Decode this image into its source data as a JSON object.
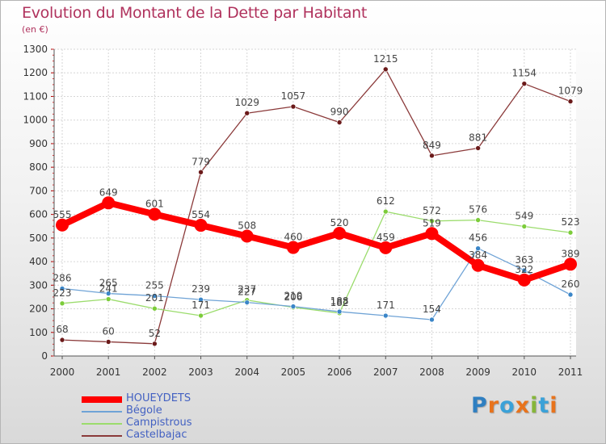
{
  "title": "Evolution du Montant de la Dette par Habitant",
  "unit": "(en €)",
  "logo": {
    "text": "Proxiti",
    "letters": [
      {
        "ch": "P",
        "color": "#2f7fc1"
      },
      {
        "ch": "r",
        "color": "#e8731c"
      },
      {
        "ch": "o",
        "color": "#3aa1d8"
      },
      {
        "ch": "x",
        "color": "#e8731c"
      },
      {
        "ch": "i",
        "color": "#86b63a"
      },
      {
        "ch": "t",
        "color": "#3aa1d8"
      },
      {
        "ch": "i",
        "color": "#e8731c"
      }
    ]
  },
  "chart_data": {
    "type": "line",
    "title": "Evolution du Montant de la Dette par Habitant",
    "subtitle": "(en €)",
    "x": [
      "2000",
      "2001",
      "2002",
      "2003",
      "2004",
      "2005",
      "2006",
      "2007",
      "2008",
      "2009",
      "2010",
      "2011"
    ],
    "ylim": [
      0,
      1300
    ],
    "yticks": [
      0,
      100,
      200,
      300,
      400,
      500,
      600,
      700,
      800,
      900,
      1000,
      1100,
      1200,
      1300
    ],
    "grid": true,
    "legend_position": "bottom-left",
    "series": [
      {
        "name": "HOUEYDETS",
        "color": "#ff0000",
        "bold": true,
        "values": [
          555,
          649,
          601,
          554,
          508,
          460,
          520,
          459,
          519,
          384,
          322,
          389
        ],
        "labels": [
          "555",
          "649",
          "601",
          "554",
          "508",
          "460",
          "520",
          "459",
          "519",
          "384",
          "322",
          "389"
        ]
      },
      {
        "name": "Bégole",
        "color": "#6fa3d6",
        "marker": "#3b86c8",
        "values": [
          286,
          265,
          255,
          239,
          227,
          210,
          188,
          171,
          154,
          456,
          363,
          260
        ],
        "labels": [
          "286",
          "265",
          "255",
          "239",
          "227",
          "210",
          "188",
          "171",
          "154",
          "456",
          "363",
          "260"
        ]
      },
      {
        "name": "Campistrous",
        "color": "#9bdc6c",
        "marker": "#7ccc3a",
        "values": [
          223,
          241,
          201,
          171,
          237,
          206,
          182,
          612,
          572,
          576,
          549,
          523
        ],
        "labels": [
          "223",
          "241",
          "201",
          "171",
          "237",
          "206",
          "182",
          "612",
          "572",
          "576",
          "549",
          "523"
        ]
      },
      {
        "name": "Castelbajac",
        "color": "#8b3a3a",
        "marker": "#6b1a1a",
        "values": [
          68,
          60,
          52,
          779,
          1029,
          1057,
          990,
          1215,
          849,
          881,
          1154,
          1079
        ],
        "labels": [
          "68",
          "60",
          "52",
          "779",
          "1029",
          "1057",
          "990",
          "1215",
          "849",
          "881",
          "1154",
          "1079"
        ]
      }
    ]
  }
}
